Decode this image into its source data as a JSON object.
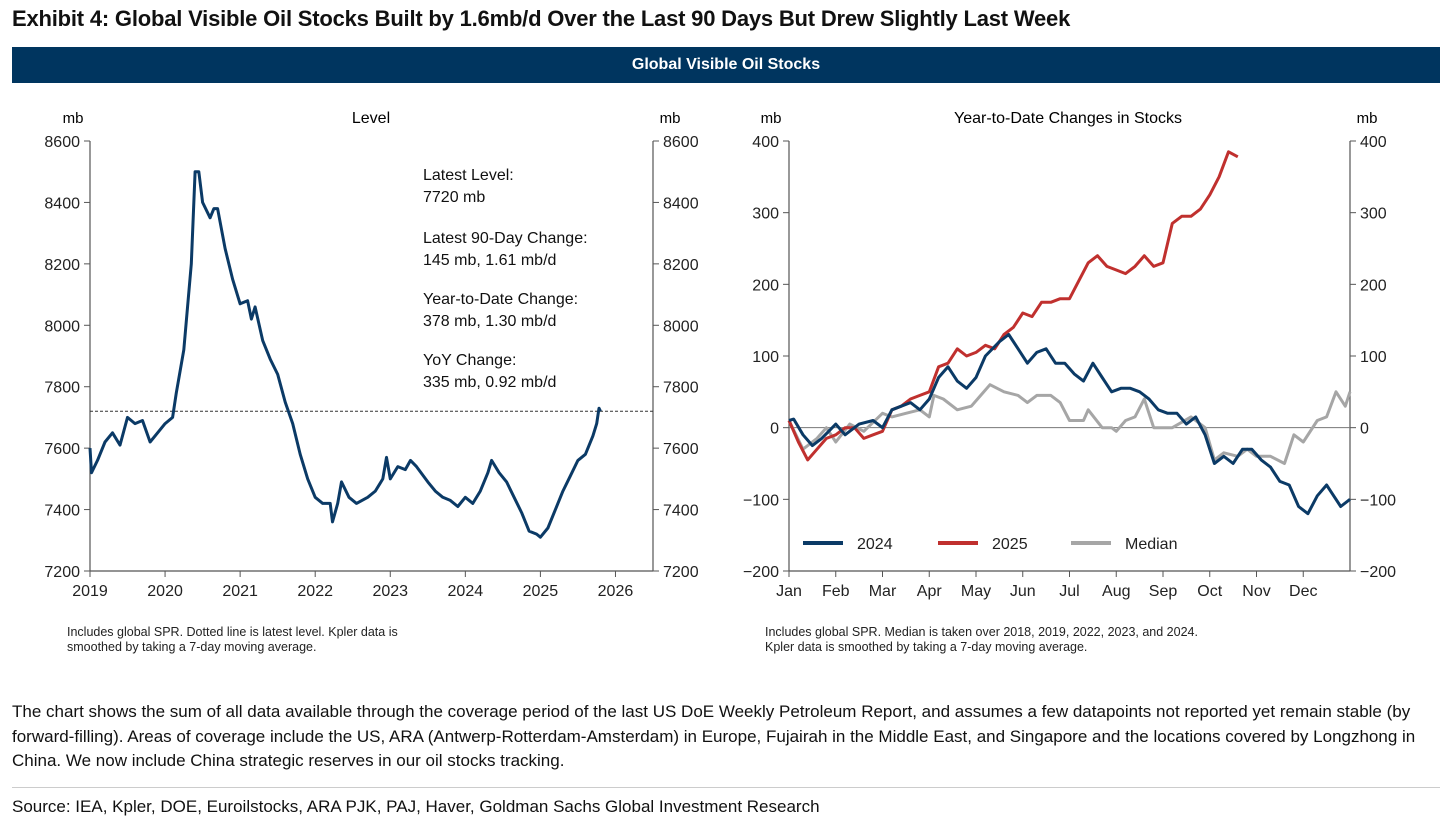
{
  "title": "Exhibit 4: Global Visible Oil Stocks Built by 1.6mb/d Over the Last 90 Days But Drew Slightly Last Week",
  "banner": "Global Visible Oil Stocks",
  "colors": {
    "navy": "#0b3a66",
    "red": "#c0302e",
    "gray": "#a6a6a6",
    "banner": "#00355f"
  },
  "chart_data": [
    {
      "type": "line",
      "title": "Level",
      "ylabel_left": "mb",
      "ylabel_right": "mb",
      "xlim": [
        2019,
        2026.5
      ],
      "ylim": [
        7200,
        8600
      ],
      "xticks": [
        2019,
        2020,
        2021,
        2022,
        2023,
        2024,
        2025,
        2026
      ],
      "yticks": [
        7200,
        7400,
        7600,
        7800,
        8000,
        8200,
        8400,
        8600
      ],
      "reference_line": {
        "value": 7720,
        "style": "dotted",
        "meaning": "latest level"
      },
      "annotations": [
        [
          "Latest Level:",
          "7720 mb"
        ],
        [
          "Latest 90-Day Change:",
          "145 mb, 1.61 mb/d"
        ],
        [
          "Year-to-Date Change:",
          "378 mb, 1.30 mb/d"
        ],
        [
          "YoY Change:",
          "335 mb, 0.92 mb/d"
        ]
      ],
      "series": [
        {
          "name": "Global visible oil stocks",
          "color": "#0b3a66",
          "x": [
            2019.0,
            2019.02,
            2019.1,
            2019.2,
            2019.3,
            2019.4,
            2019.5,
            2019.6,
            2019.7,
            2019.8,
            2019.9,
            2020.0,
            2020.1,
            2020.15,
            2020.25,
            2020.35,
            2020.4,
            2020.45,
            2020.5,
            2020.6,
            2020.65,
            2020.7,
            2020.8,
            2020.9,
            2021.0,
            2021.1,
            2021.15,
            2021.2,
            2021.3,
            2021.4,
            2021.5,
            2021.6,
            2021.7,
            2021.8,
            2021.9,
            2022.0,
            2022.1,
            2022.2,
            2022.23,
            2022.3,
            2022.35,
            2022.45,
            2022.55,
            2022.7,
            2022.8,
            2022.9,
            2022.95,
            2023.0,
            2023.1,
            2023.2,
            2023.27,
            2023.35,
            2023.5,
            2023.6,
            2023.7,
            2023.8,
            2023.9,
            2024.0,
            2024.1,
            2024.2,
            2024.3,
            2024.35,
            2024.45,
            2024.55,
            2024.65,
            2024.75,
            2024.85,
            2024.95,
            2025.0,
            2025.1,
            2025.2,
            2025.3,
            2025.4,
            2025.5,
            2025.6,
            2025.7,
            2025.75,
            2025.78,
            2025.8
          ],
          "y": [
            7600,
            7520,
            7560,
            7620,
            7650,
            7610,
            7700,
            7680,
            7690,
            7620,
            7650,
            7680,
            7700,
            7780,
            7920,
            8200,
            8500,
            8500,
            8400,
            8350,
            8380,
            8380,
            8250,
            8150,
            8070,
            8080,
            8020,
            8060,
            7950,
            7890,
            7840,
            7750,
            7680,
            7580,
            7500,
            7440,
            7420,
            7420,
            7360,
            7420,
            7490,
            7440,
            7420,
            7440,
            7460,
            7500,
            7570,
            7500,
            7540,
            7530,
            7560,
            7540,
            7490,
            7460,
            7440,
            7430,
            7410,
            7440,
            7420,
            7460,
            7520,
            7560,
            7520,
            7490,
            7440,
            7390,
            7330,
            7320,
            7310,
            7340,
            7400,
            7460,
            7510,
            7560,
            7580,
            7640,
            7680,
            7730,
            7720
          ]
        }
      ],
      "footnote": [
        "Includes global SPR. Dotted line is latest level. Kpler data is",
        "smoothed by taking a 7-day moving average."
      ]
    },
    {
      "type": "line",
      "title": "Year-to-Date Changes in Stocks",
      "ylabel_left": "mb",
      "ylabel_right": "mb",
      "xlim": [
        0,
        12
      ],
      "ylim": [
        -200,
        400
      ],
      "xticks": [
        "Jan",
        "Feb",
        "Mar",
        "Apr",
        "May",
        "Jun",
        "Jul",
        "Aug",
        "Sep",
        "Oct",
        "Nov",
        "Dec"
      ],
      "yticks": [
        -200,
        -100,
        0,
        100,
        200,
        300,
        400
      ],
      "legend_position": "bottom-left",
      "series": [
        {
          "name": "2024",
          "color": "#0b3a66",
          "x": [
            0,
            0.1,
            0.3,
            0.5,
            0.7,
            1.0,
            1.2,
            1.5,
            1.8,
            2.0,
            2.2,
            2.4,
            2.6,
            2.8,
            3.0,
            3.2,
            3.4,
            3.6,
            3.8,
            4.0,
            4.2,
            4.5,
            4.7,
            4.9,
            5.1,
            5.3,
            5.5,
            5.7,
            5.9,
            6.1,
            6.3,
            6.5,
            6.7,
            6.9,
            7.1,
            7.3,
            7.5,
            7.7,
            7.9,
            8.1,
            8.3,
            8.5,
            8.7,
            8.9,
            9.1,
            9.3,
            9.5,
            9.7,
            9.9,
            10.1,
            10.3,
            10.5,
            10.7,
            10.9,
            11.1,
            11.3,
            11.5,
            11.6,
            11.8,
            12.0
          ],
          "y": [
            10,
            12,
            -10,
            -25,
            -15,
            5,
            -10,
            5,
            10,
            0,
            25,
            30,
            35,
            25,
            40,
            70,
            85,
            65,
            55,
            70,
            100,
            120,
            130,
            110,
            90,
            105,
            110,
            90,
            90,
            75,
            65,
            90,
            70,
            50,
            55,
            55,
            50,
            40,
            25,
            20,
            20,
            5,
            15,
            -10,
            -50,
            -40,
            -50,
            -30,
            -30,
            -45,
            -55,
            -75,
            -80,
            -110,
            -120,
            -95,
            -80,
            -90,
            -110,
            -100
          ]
        },
        {
          "name": "2025",
          "color": "#c0302e",
          "x": [
            0,
            0.2,
            0.4,
            0.6,
            0.8,
            1.0,
            1.2,
            1.4,
            1.6,
            1.8,
            2.0,
            2.2,
            2.4,
            2.6,
            2.8,
            3.0,
            3.2,
            3.4,
            3.6,
            3.8,
            4.0,
            4.2,
            4.4,
            4.6,
            4.8,
            5.0,
            5.2,
            5.4,
            5.6,
            5.8,
            6.0,
            6.2,
            6.4,
            6.6,
            6.8,
            7.0,
            7.2,
            7.4,
            7.6,
            7.8,
            8.0,
            8.2,
            8.4,
            8.6,
            8.8,
            9.0,
            9.2,
            9.4,
            9.6
          ],
          "y": [
            10,
            -20,
            -45,
            -30,
            -15,
            -10,
            0,
            0,
            -15,
            -10,
            -5,
            25,
            30,
            40,
            45,
            50,
            85,
            90,
            110,
            100,
            105,
            115,
            110,
            130,
            140,
            160,
            155,
            175,
            175,
            180,
            180,
            205,
            230,
            240,
            225,
            220,
            215,
            225,
            240,
            225,
            230,
            285,
            295,
            295,
            305,
            325,
            350,
            385,
            378
          ]
        },
        {
          "name": "Median",
          "color": "#a6a6a6",
          "x": [
            0,
            0.3,
            0.6,
            0.8,
            1.0,
            1.3,
            1.6,
            2.0,
            2.2,
            2.5,
            2.8,
            3.0,
            3.1,
            3.3,
            3.6,
            3.9,
            4.1,
            4.3,
            4.6,
            4.9,
            5.1,
            5.3,
            5.6,
            5.8,
            6.0,
            6.3,
            6.4,
            6.7,
            6.9,
            7.0,
            7.2,
            7.4,
            7.6,
            7.8,
            8.0,
            8.2,
            8.6,
            8.9,
            9.1,
            9.3,
            9.6,
            9.8,
            10.0,
            10.3,
            10.6,
            10.8,
            11.0,
            11.3,
            11.5,
            11.7,
            11.9,
            12.0
          ],
          "y": [
            10,
            -30,
            -15,
            0,
            -20,
            5,
            -5,
            20,
            15,
            20,
            25,
            15,
            45,
            40,
            25,
            30,
            45,
            60,
            50,
            45,
            35,
            45,
            45,
            35,
            10,
            10,
            25,
            0,
            0,
            -5,
            10,
            15,
            40,
            0,
            0,
            0,
            15,
            0,
            -45,
            -35,
            -40,
            -30,
            -40,
            -40,
            -50,
            -10,
            -20,
            10,
            15,
            50,
            30,
            50
          ]
        }
      ],
      "footnote": [
        "Includes global SPR. Median is taken over 2018, 2019, 2022, 2023, and 2024.",
        "Kpler data is smoothed by taking a 7-day moving average."
      ]
    }
  ],
  "paragraph": "The chart shows the sum of all data available through the coverage period of the last US DoE Weekly Petroleum Report, and assumes a few datapoints not reported yet remain stable (by forward-filling). Areas of coverage include the US, ARA (Antwerp-Rotterdam-Amsterdam) in Europe, Fujairah in the Middle East, and Singapore and the locations covered by Longzhong in China. We now include China strategic reserves in our oil stocks tracking.",
  "source": "Source: IEA, Kpler, DOE, Euroilstocks, ARA PJK, PAJ, Haver, Goldman Sachs Global Investment Research"
}
